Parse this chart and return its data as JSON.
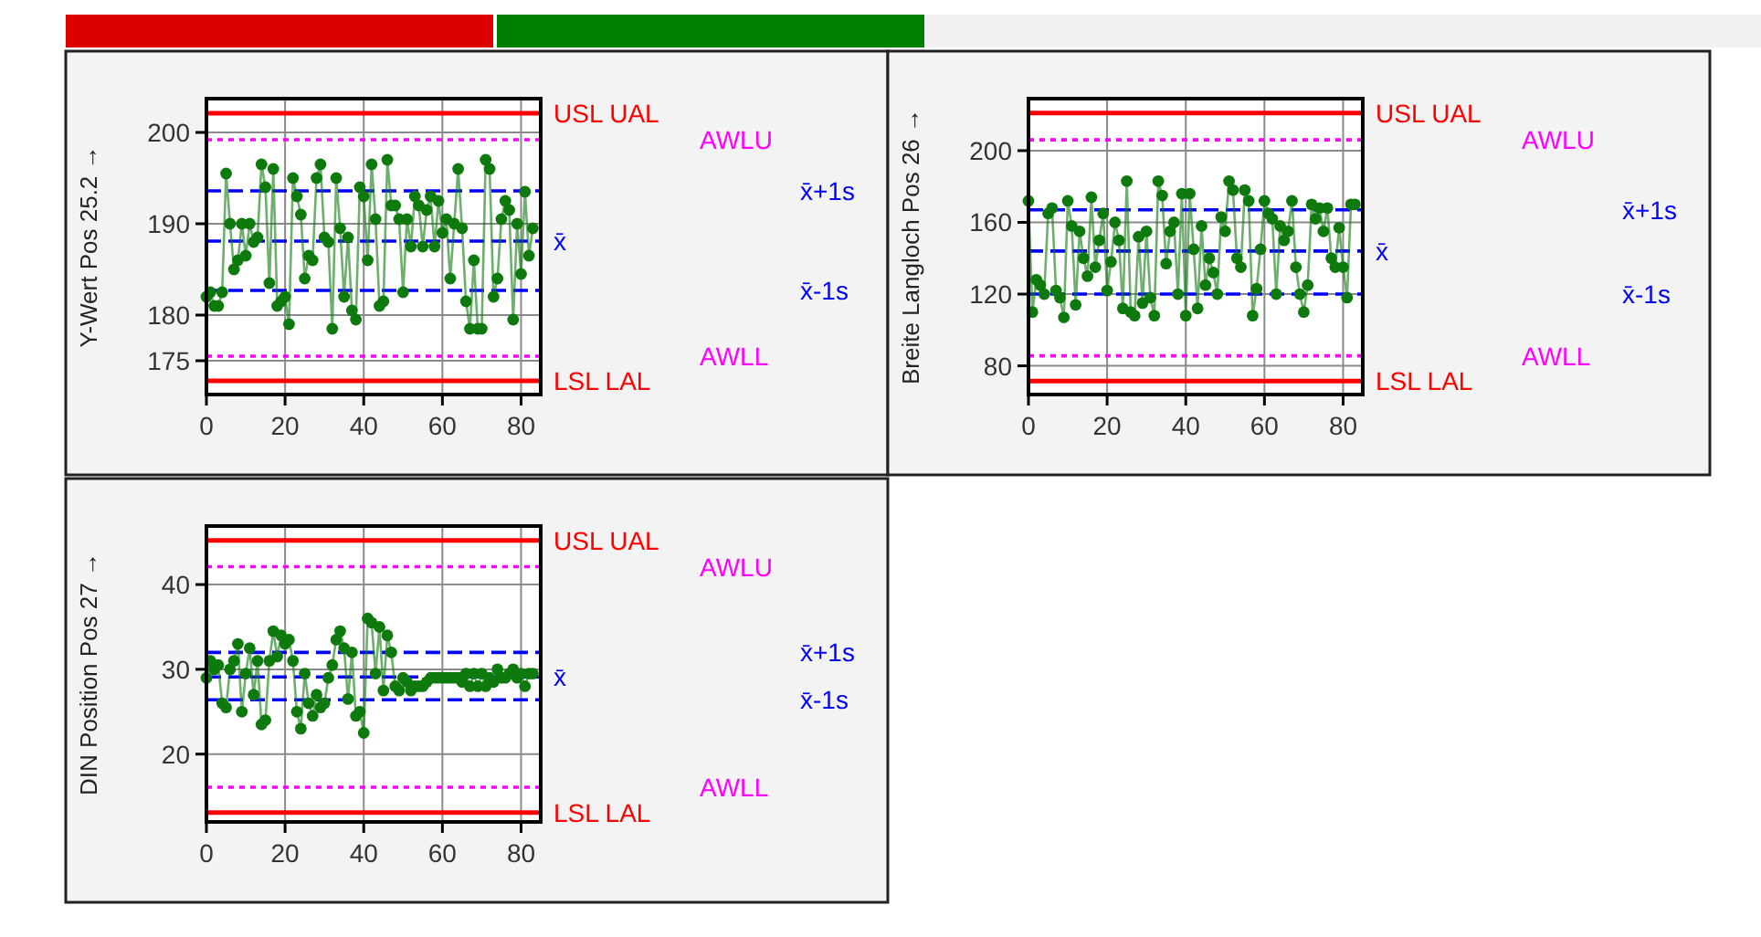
{
  "chart_data": [
    {
      "type": "line",
      "ylabel": "Y-Wert Pos 25.2 →",
      "marker": "circle",
      "grid": true,
      "xlim": [
        0,
        85
      ],
      "xticks": [
        0,
        20,
        40,
        60,
        80
      ],
      "ylim": [
        171.3,
        203.7
      ],
      "yticks": [
        175,
        180,
        190,
        200
      ],
      "x": [
        0,
        1,
        2,
        3,
        4,
        5,
        6,
        7,
        8,
        9,
        10,
        11,
        12,
        13,
        14,
        15,
        16,
        17,
        18,
        19,
        20,
        21,
        22,
        23,
        24,
        25,
        26,
        27,
        28,
        29,
        30,
        31,
        32,
        33,
        34,
        35,
        36,
        37,
        38,
        39,
        40,
        41,
        42,
        43,
        44,
        45,
        46,
        47,
        48,
        49,
        50,
        51,
        52,
        53,
        54,
        55,
        56,
        57,
        58,
        59,
        60,
        61,
        62,
        63,
        64,
        65,
        66,
        67,
        68,
        69,
        70,
        71,
        72,
        73,
        74,
        75,
        76,
        77,
        78,
        79,
        80,
        81,
        82,
        83
      ],
      "series": [
        {
          "color": "#0e7a0e",
          "values": [
            182,
            182.5,
            181,
            181,
            182.5,
            195.5,
            190,
            185,
            186,
            190,
            186.5,
            190,
            188,
            188.5,
            196.5,
            194,
            183.5,
            196,
            181,
            181.5,
            182,
            179,
            195,
            193,
            191,
            184,
            186.5,
            186,
            195,
            196.5,
            188.5,
            188,
            178.5,
            195,
            189.5,
            182,
            188.5,
            180.5,
            179.5,
            194,
            193,
            186,
            196.5,
            190.5,
            181,
            181.5,
            197,
            192,
            192,
            190.5,
            182.5,
            190.5,
            187.5,
            193,
            192,
            187.5,
            191.5,
            193,
            187.5,
            192.5,
            189,
            190.5,
            184,
            190,
            196,
            189.5,
            181.5,
            178.5,
            186,
            178.5,
            178.5,
            197,
            196,
            182,
            184,
            190.5,
            192.5,
            191.5,
            179.5,
            190,
            184.5,
            193.5,
            186.5,
            189.5
          ]
        }
      ],
      "ref_lines": [
        {
          "axis": "y",
          "value": 202.1,
          "label": "USL  UAL",
          "color": "#ff0000",
          "line_style": "solid"
        },
        {
          "axis": "y",
          "value": 199.2,
          "label": "AWLU",
          "color": "#ff00ff",
          "line_style": "dotted"
        },
        {
          "axis": "y",
          "value": 193.6,
          "label": "x̄+1s",
          "color": "#0000ff",
          "line_style": "dashed"
        },
        {
          "axis": "y",
          "value": 188.1,
          "label": "x̄",
          "color": "#0000ff",
          "line_style": "dashed"
        },
        {
          "axis": "y",
          "value": 182.7,
          "label": "x̄-1s",
          "color": "#0000ff",
          "line_style": "dashed"
        },
        {
          "axis": "y",
          "value": 175.5,
          "label": "AWLL",
          "color": "#ff00ff",
          "line_style": "dotted"
        },
        {
          "axis": "y",
          "value": 172.8,
          "label": "LSL  LAL",
          "color": "#ff0000",
          "line_style": "solid"
        }
      ]
    },
    {
      "type": "line",
      "ylabel": "Breite Langloch Pos 26 →",
      "marker": "circle",
      "grid": true,
      "xlim": [
        0,
        85
      ],
      "xticks": [
        0,
        20,
        40,
        60,
        80
      ],
      "ylim": [
        64,
        229
      ],
      "yticks": [
        80,
        120,
        160,
        200
      ],
      "x": [
        0,
        1,
        2,
        3,
        4,
        5,
        6,
        7,
        8,
        9,
        10,
        11,
        12,
        13,
        14,
        15,
        16,
        17,
        18,
        19,
        20,
        21,
        22,
        23,
        24,
        25,
        26,
        27,
        28,
        29,
        30,
        31,
        32,
        33,
        34,
        35,
        36,
        37,
        38,
        39,
        40,
        41,
        42,
        43,
        44,
        45,
        46,
        47,
        48,
        49,
        50,
        51,
        52,
        53,
        54,
        55,
        56,
        57,
        58,
        59,
        60,
        61,
        62,
        63,
        64,
        65,
        66,
        67,
        68,
        69,
        70,
        71,
        72,
        73,
        74,
        75,
        76,
        77,
        78,
        79,
        80,
        81,
        82,
        83
      ],
      "series": [
        {
          "color": "#0e7a0e",
          "values": [
            172,
            110,
            128,
            125,
            120,
            165,
            168,
            122,
            118,
            107,
            172,
            158,
            114,
            155,
            140,
            130,
            174,
            135,
            150,
            165,
            122,
            138,
            160,
            150,
            112,
            183,
            110,
            108,
            152,
            115,
            155,
            118,
            108,
            183,
            175,
            137,
            155,
            160,
            120,
            176,
            108,
            176,
            145,
            112,
            158,
            125,
            140,
            132,
            120,
            163,
            155,
            183,
            178,
            140,
            135,
            178,
            172,
            108,
            123,
            145,
            172,
            165,
            162,
            120,
            158,
            150,
            155,
            172,
            135,
            120,
            110,
            125,
            170,
            162,
            168,
            155,
            168,
            140,
            135,
            157,
            135,
            118,
            170,
            170
          ]
        }
      ],
      "ref_lines": [
        {
          "axis": "y",
          "value": 221,
          "label": "USL  UAL",
          "color": "#ff0000",
          "line_style": "solid"
        },
        {
          "axis": "y",
          "value": 206,
          "label": "AWLU",
          "color": "#ff00ff",
          "line_style": "dotted"
        },
        {
          "axis": "y",
          "value": 167,
          "label": "x̄+1s",
          "color": "#0000ff",
          "line_style": "dashed"
        },
        {
          "axis": "y",
          "value": 144,
          "label": "x̄",
          "color": "#0000ff",
          "line_style": "dashed"
        },
        {
          "axis": "y",
          "value": 120,
          "label": "x̄-1s",
          "color": "#0000ff",
          "line_style": "dashed"
        },
        {
          "axis": "y",
          "value": 85.6,
          "label": "AWLL",
          "color": "#ff00ff",
          "line_style": "dotted"
        },
        {
          "axis": "y",
          "value": 71.5,
          "label": "LSL  LAL",
          "color": "#ff0000",
          "line_style": "solid"
        }
      ]
    },
    {
      "type": "line",
      "ylabel": "DIN Position Pos 27 →",
      "marker": "circle",
      "grid": true,
      "xlim": [
        0,
        85
      ],
      "xticks": [
        0,
        20,
        40,
        60,
        80
      ],
      "ylim": [
        12,
        46.9
      ],
      "yticks": [
        20,
        30,
        40
      ],
      "x": [
        0,
        1,
        2,
        3,
        4,
        5,
        6,
        7,
        8,
        9,
        10,
        11,
        12,
        13,
        14,
        15,
        16,
        17,
        18,
        19,
        20,
        21,
        22,
        23,
        24,
        25,
        26,
        27,
        28,
        29,
        30,
        31,
        32,
        33,
        34,
        35,
        36,
        37,
        38,
        39,
        40,
        41,
        42,
        43,
        44,
        45,
        46,
        47,
        48,
        49,
        50,
        51,
        52,
        53,
        54,
        55,
        56,
        57,
        58,
        59,
        60,
        61,
        62,
        63,
        64,
        65,
        66,
        67,
        68,
        69,
        70,
        71,
        72,
        73,
        74,
        75,
        76,
        77,
        78,
        79,
        80,
        81,
        82,
        83
      ],
      "series": [
        {
          "color": "#0e7a0e",
          "values": [
            29,
            31,
            30,
            30.5,
            26,
            25.5,
            30,
            31,
            33,
            25,
            29.5,
            32.5,
            27,
            31,
            23.5,
            24,
            31,
            34.5,
            31.5,
            34,
            33,
            33.5,
            31,
            25,
            23,
            29.5,
            26,
            24.5,
            27,
            25.5,
            26,
            29,
            30.5,
            33.5,
            34.5,
            32.5,
            26.5,
            32,
            24.5,
            25,
            22.5,
            36,
            35.5,
            29.5,
            35,
            27.5,
            34,
            32,
            28,
            27.5,
            29,
            28.5,
            27.5,
            28,
            28,
            28,
            28.5,
            29,
            29,
            29,
            29,
            29,
            29,
            29,
            29,
            28.5,
            29.5,
            28,
            29.5,
            28,
            29.5,
            28,
            29,
            28.5,
            30,
            29,
            29,
            29.5,
            30,
            29,
            29.5,
            28,
            29.5,
            29.5
          ]
        }
      ],
      "ref_lines": [
        {
          "axis": "y",
          "value": 45.2,
          "label": "USL  UAL",
          "color": "#ff0000",
          "line_style": "solid"
        },
        {
          "axis": "y",
          "value": 42.1,
          "label": "AWLU",
          "color": "#ff00ff",
          "line_style": "dotted"
        },
        {
          "axis": "y",
          "value": 32,
          "label": "x̄+1s",
          "color": "#0000ff",
          "line_style": "dashed"
        },
        {
          "axis": "y",
          "value": 29.1,
          "label": "x̄",
          "color": "#0000ff",
          "line_style": "dashed"
        },
        {
          "axis": "y",
          "value": 26.4,
          "label": "x̄-1s",
          "color": "#0000ff",
          "line_style": "dashed"
        },
        {
          "axis": "y",
          "value": 16.1,
          "label": "AWLL",
          "color": "#ff00ff",
          "line_style": "dotted"
        },
        {
          "axis": "y",
          "value": 13.1,
          "label": "LSL  LAL",
          "color": "#ff0000",
          "line_style": "solid"
        }
      ]
    }
  ]
}
